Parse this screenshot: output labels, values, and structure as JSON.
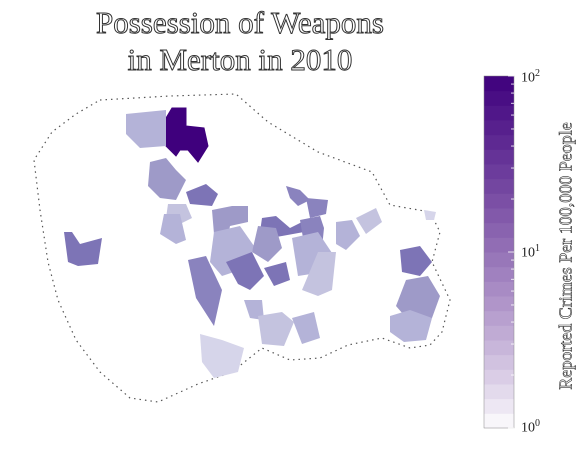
{
  "title": {
    "line1": "Possession of Weapons",
    "line2": "in Merton in 2010"
  },
  "colorbar": {
    "label": "Reported Crimes Per 100,000 People",
    "scale": "log",
    "range": [
      1,
      100
    ],
    "ticks": [
      {
        "base": "10",
        "exp": "2",
        "value": 100
      },
      {
        "base": "10",
        "exp": "1",
        "value": 10
      },
      {
        "base": "10",
        "exp": "0",
        "value": 1
      }
    ],
    "color_low": "#ffffff",
    "color_high": "#3f007d"
  },
  "legend_colors": {
    "outline": "#333333",
    "background": "#ffffff"
  }
}
